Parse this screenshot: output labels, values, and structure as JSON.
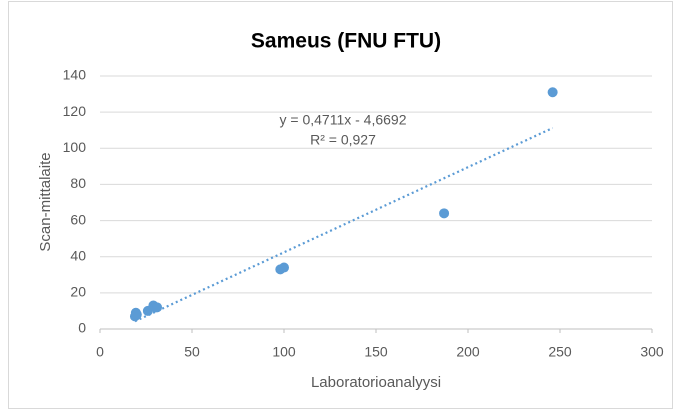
{
  "chart_data": {
    "type": "scatter",
    "title": "Sameus (FNU FTU)",
    "xlabel": "Laboratorioanalyysi",
    "ylabel": "Scan-mittalaite",
    "series": [
      {
        "name": "Sameus",
        "color": "#5b9bd5",
        "x": [
          19,
          19.5,
          20,
          26,
          29,
          30,
          31,
          98,
          100,
          187,
          246
        ],
        "values": [
          7,
          9,
          8,
          10,
          13,
          12,
          12,
          33,
          34,
          64,
          131
        ]
      }
    ],
    "trendline": {
      "slope": 0.4711,
      "intercept": -4.6692,
      "label": "y = 0,4711x - 4,6692",
      "r2_label": "R² = 0,927"
    },
    "xlim": [
      0,
      300
    ],
    "xticks": [
      0,
      50,
      100,
      150,
      200,
      250,
      300
    ],
    "ylim": [
      0,
      140
    ],
    "yticks": [
      0,
      20,
      40,
      60,
      80,
      100,
      120,
      140
    ],
    "grid": true
  }
}
